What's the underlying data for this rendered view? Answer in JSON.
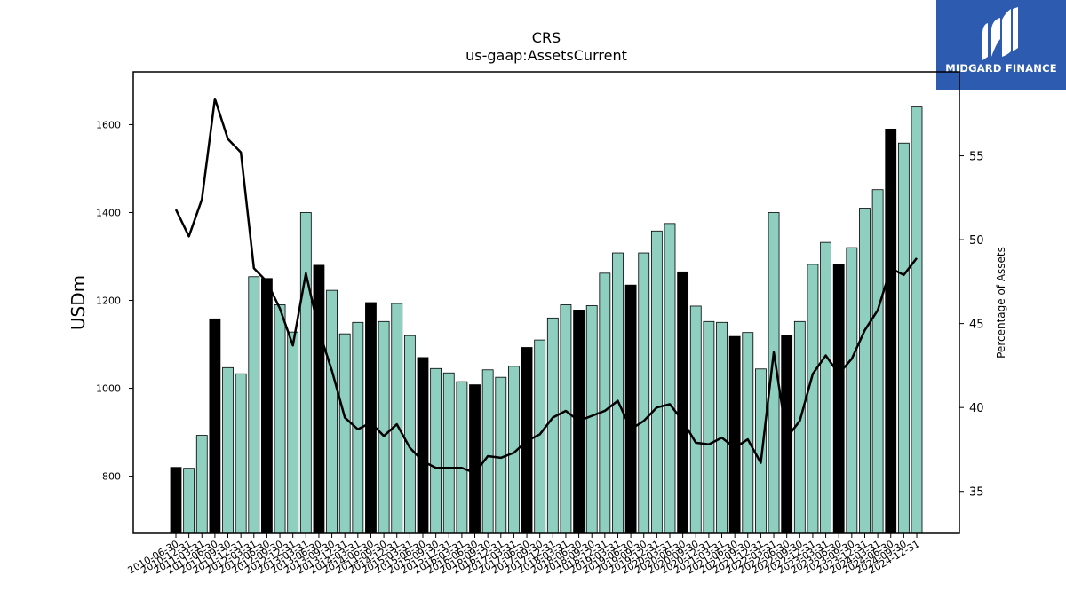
{
  "brand": {
    "name": "MIDGARD FINANCE",
    "icon": "midgard-logo-icon",
    "color": "#2d5bb0"
  },
  "chart_data": {
    "type": "bar",
    "title": "CRS",
    "subtitle": "us-gaap:AssetsCurrent",
    "ylabel": "USDm",
    "y2label": "Percentage of Assets",
    "ylim": [
      670,
      1720
    ],
    "y2lim": [
      32.5,
      60
    ],
    "yticks": [
      800,
      1000,
      1200,
      1400,
      1600
    ],
    "y2ticks": [
      35,
      40,
      45,
      50,
      55
    ],
    "colors": {
      "bar": "#8ecfc0",
      "highlight_bar": "#000000",
      "line": "#000000"
    },
    "legend": "none",
    "grid": false,
    "highlight_rule": "fiscal year-end (06-30) bars drawn in black",
    "categories": [
      "2010-06-30",
      "2010-12-31",
      "2011-03-31",
      "2011-06-30",
      "2011-09-30",
      "2011-12-31",
      "2012-03-31",
      "2012-06-30",
      "2012-09-30",
      "2012-12-31",
      "2013-03-31",
      "2013-06-30",
      "2013-09-30",
      "2013-12-31",
      "2014-03-31",
      "2014-06-30",
      "2014-09-30",
      "2014-12-31",
      "2015-03-31",
      "2015-06-30",
      "2015-09-30",
      "2015-12-31",
      "2016-03-31",
      "2016-06-30",
      "2016-09-30",
      "2016-12-31",
      "2017-03-31",
      "2017-06-30",
      "2017-09-30",
      "2017-12-31",
      "2018-03-31",
      "2018-06-30",
      "2018-09-30",
      "2018-12-31",
      "2019-03-31",
      "2019-06-30",
      "2019-09-30",
      "2019-12-31",
      "2020-03-31",
      "2020-06-30",
      "2020-09-30",
      "2020-12-31",
      "2021-03-31",
      "2021-06-30",
      "2021-09-30",
      "2021-12-31",
      "2022-03-31",
      "2022-06-30",
      "2022-09-30",
      "2022-12-31",
      "2023-03-31",
      "2023-06-30",
      "2023-09-30",
      "2023-12-31",
      "2024-03-31",
      "2024-06-30",
      "2024-09-30",
      "2024-12-31"
    ],
    "tick_labels": [
      "2010-06-30",
      "2010-12-31",
      "2011-03-31",
      "2011-06-30",
      "2011-09-30",
      "2011-12-31",
      "2012-03-31",
      "2012-06-30",
      "2012-09-30",
      "2012-12-31",
      "2013-03-31",
      "2013-06-30",
      "2013-09-30",
      "2013-12-31",
      "2014-03-31",
      "2014-06-30",
      "2014-09-30",
      "2014-12-31",
      "2015-03-31",
      "2015-06-30",
      "2015-09-30",
      "2015-12-31",
      "2016-03-31",
      "2016-06-30",
      "2016-09-30",
      "2016-12-31",
      "2017-03-31",
      "2017-06-30",
      "2017-09-30",
      "2017-12-31",
      "2018-03-31",
      "2018-06-30",
      "2018-09-30",
      "2018-12-31",
      "2019-03-31",
      "2019-06-30",
      "2019-09-30",
      "2019-12-31",
      "2020-03-31",
      "2020-06-30",
      "2020-09-30",
      "2020-12-31",
      "2021-03-31",
      "2021-06-30",
      "2021-09-30",
      "2021-12-31",
      "2022-03-31",
      "2022-06-30",
      "2022-09-30",
      "2022-12-31",
      "2023-03-31",
      "2023-06-30",
      "2023-09-30",
      "2023-12-31",
      "2024-03-31",
      "2024-06-30",
      "2024-09-30",
      "2024-12-31"
    ],
    "series": [
      {
        "axis": "left",
        "values": [
          820,
          818,
          893,
          1158,
          1047,
          1033,
          1254,
          1250,
          1190,
          1128,
          1400,
          1280,
          1223,
          1124,
          1150,
          1195,
          1152,
          1193,
          1120,
          1070,
          1045,
          1035,
          1015,
          1008,
          1042,
          1025,
          1050,
          1093,
          1110,
          1160,
          1190,
          1178,
          1188,
          1262,
          1308,
          1235,
          1308,
          1358,
          1375,
          1265,
          1187,
          1152,
          1150,
          1118,
          1127,
          1044,
          1400,
          1120,
          1152,
          1282,
          1332,
          1282,
          1320,
          1410,
          1452,
          1590,
          1558,
          1640
        ]
      },
      {
        "axis": "right",
        "type": "line",
        "values": [
          51.8,
          50.2,
          52.4,
          58.4,
          56.0,
          55.2,
          48.3,
          47.5,
          45.9,
          43.7,
          48.0,
          44.6,
          42.2,
          39.4,
          38.7,
          39.1,
          38.3,
          39.0,
          37.6,
          36.8,
          36.4,
          36.4,
          36.4,
          36.1,
          37.1,
          37.0,
          37.3,
          38.0,
          38.4,
          39.4,
          39.8,
          39.2,
          39.5,
          39.8,
          40.4,
          38.7,
          39.2,
          40.0,
          40.2,
          39.2,
          37.9,
          37.8,
          38.2,
          37.6,
          38.1,
          36.7,
          43.3,
          38.2,
          39.2,
          42.0,
          43.1,
          42.0,
          42.9,
          44.6,
          45.8,
          48.3,
          47.9,
          48.9
        ]
      }
    ]
  }
}
